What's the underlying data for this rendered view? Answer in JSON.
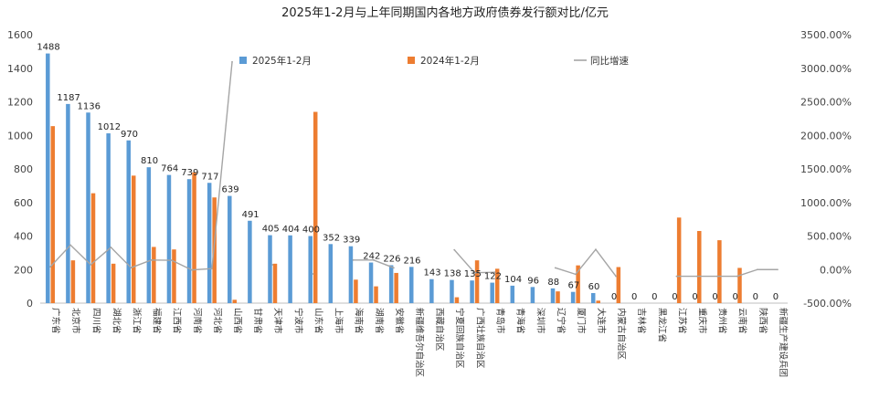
{
  "chart_data": {
    "type": "bar",
    "title": "2025年1-2月与上年同期国内各地方政府债券发行额对比/亿元",
    "categories": [
      "广东省",
      "北京市",
      "四川省",
      "湖北省",
      "浙江省",
      "福建省",
      "江西省",
      "河南省",
      "河北省",
      "山西省",
      "甘肃省",
      "天津市",
      "宁波市",
      "山东省",
      "上海市",
      "海南省",
      "湖南省",
      "安徽省",
      "新疆维吾尔自治区",
      "西藏自治区",
      "宁夏回族自治区",
      "广西壮族自治区",
      "青岛市",
      "青海省",
      "深圳市",
      "辽宁省",
      "厦门市",
      "大连市",
      "内蒙古自治区",
      "吉林省",
      "黑龙江省",
      "江苏省",
      "重庆市",
      "贵州省",
      "云南省",
      "陕西省",
      "新疆生产建设兵团"
    ],
    "series": [
      {
        "name": "2025年1-2月",
        "color": "#5b9bd5",
        "values": [
          1488,
          1187,
          1136,
          1012,
          970,
          810,
          764,
          739,
          717,
          639,
          491,
          405,
          404,
          400,
          352,
          339,
          242,
          226,
          216,
          143,
          138,
          135,
          122,
          104,
          96,
          88,
          67,
          60,
          0,
          0,
          0,
          0,
          0,
          0,
          0,
          0,
          0
        ],
        "labels": [
          "1488",
          "1187",
          "1136",
          "1012",
          "970",
          "810",
          "764",
          "739",
          "717",
          "639",
          "491",
          "405",
          "404",
          "400",
          "352",
          "339",
          "242",
          "226",
          "216",
          "143",
          "138",
          "135",
          "122",
          "104",
          "96",
          "88",
          "67",
          "60",
          "0",
          "0",
          "0",
          "0",
          "0",
          "0",
          "0",
          "0",
          "0"
        ]
      },
      {
        "name": "2024年1-2月",
        "color": "#ed7d31",
        "values": [
          1055,
          255,
          655,
          235,
          760,
          335,
          320,
          780,
          630,
          20,
          0,
          235,
          0,
          1140,
          0,
          140,
          100,
          180,
          0,
          0,
          35,
          255,
          205,
          0,
          0,
          70,
          225,
          15,
          215,
          0,
          0,
          510,
          430,
          375,
          210,
          0,
          0
        ]
      },
      {
        "name": "同比增速",
        "color": "#a5a5a5",
        "axis": "right",
        "values": [
          41,
          365,
          73,
          331,
          28,
          142,
          139,
          -5,
          14,
          3095,
          null,
          72,
          null,
          -65,
          null,
          142,
          142,
          26,
          null,
          null,
          294,
          -47,
          -40,
          null,
          null,
          26,
          -70,
          300,
          -100,
          null,
          null,
          -100,
          -100,
          -100,
          -100,
          0,
          0
        ]
      }
    ],
    "y_left": {
      "min": 0,
      "max": 1600,
      "ticks": [
        "0",
        "200",
        "400",
        "600",
        "800",
        "1000",
        "1200",
        "1400",
        "1600"
      ]
    },
    "y_right": {
      "min": -500,
      "max": 3500,
      "ticks": [
        "-500.00%",
        "0.00%",
        "500.00%",
        "1000.00%",
        "1500.00%",
        "2000.00%",
        "2500.00%",
        "3000.00%",
        "3500.00%"
      ]
    },
    "legend_position": "top",
    "grid": false
  }
}
